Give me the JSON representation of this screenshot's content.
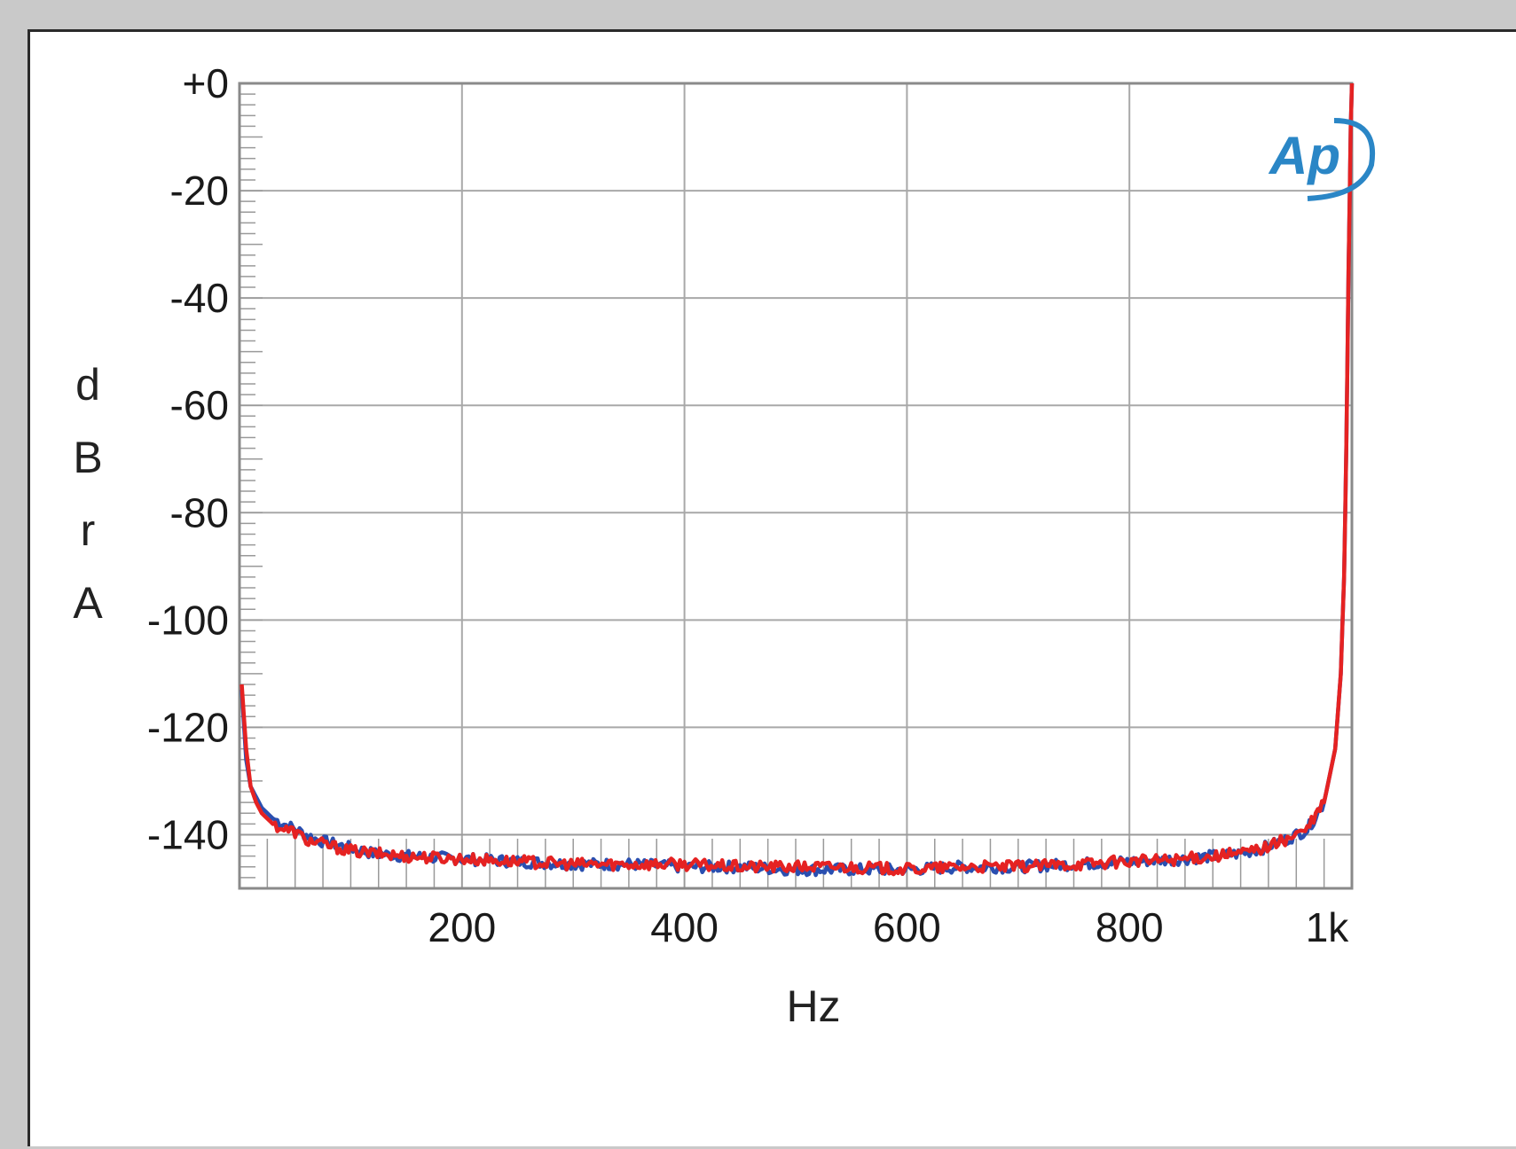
{
  "chart_data": {
    "type": "line",
    "title": "",
    "xlabel": "Hz",
    "ylabel": "dBrA",
    "xlim": [
      0,
      1000
    ],
    "ylim": [
      -150,
      0
    ],
    "grid": true,
    "legend": "none",
    "logo": "Ap",
    "x_tick_labels": [
      {
        "value": 200,
        "label": "200"
      },
      {
        "value": 400,
        "label": "400"
      },
      {
        "value": 600,
        "label": "600"
      },
      {
        "value": 800,
        "label": "800"
      },
      {
        "value": 1000,
        "label": "1k"
      }
    ],
    "y_tick_labels": [
      {
        "value": 0,
        "label": "+0"
      },
      {
        "value": -20,
        "label": "-20"
      },
      {
        "value": -40,
        "label": "-40"
      },
      {
        "value": -60,
        "label": "-60"
      },
      {
        "value": -80,
        "label": "-80"
      },
      {
        "value": -100,
        "label": "-100"
      },
      {
        "value": -120,
        "label": "-120"
      },
      {
        "value": -140,
        "label": "-140"
      }
    ],
    "series": [
      {
        "color": "#2a4fb0",
        "x": [
          2,
          6,
          10,
          15,
          20,
          30,
          40,
          50,
          60,
          70,
          80,
          90,
          100,
          120,
          150,
          200,
          250,
          300,
          350,
          400,
          450,
          500,
          550,
          600,
          650,
          700,
          750,
          800,
          850,
          900,
          920,
          940,
          960,
          975,
          985,
          990,
          993,
          995,
          997,
          999,
          1000
        ],
        "y": [
          -113,
          -126,
          -131,
          -133,
          -135,
          -137,
          -138,
          -139,
          -140,
          -141,
          -141.5,
          -142,
          -142.5,
          -143.5,
          -144,
          -144.5,
          -145,
          -145.5,
          -145.5,
          -146,
          -146,
          -146.5,
          -146.5,
          -146.5,
          -146,
          -146,
          -145.5,
          -145,
          -144.5,
          -143.5,
          -142.5,
          -141,
          -139,
          -134,
          -124,
          -110,
          -92,
          -68,
          -35,
          -8,
          0
        ]
      },
      {
        "color": "#e52222",
        "x": [
          2,
          6,
          10,
          15,
          20,
          30,
          40,
          50,
          60,
          70,
          80,
          90,
          100,
          120,
          150,
          200,
          250,
          300,
          350,
          400,
          450,
          500,
          550,
          600,
          650,
          700,
          750,
          800,
          850,
          900,
          920,
          940,
          960,
          975,
          985,
          990,
          993,
          995,
          997,
          999,
          1000
        ],
        "y": [
          -112,
          -124,
          -131,
          -134,
          -136,
          -138,
          -139,
          -139.5,
          -141,
          -141.5,
          -142,
          -142.5,
          -143,
          -143.5,
          -144,
          -144.5,
          -145,
          -145.5,
          -145.5,
          -145.5,
          -146,
          -146,
          -146,
          -146.5,
          -146,
          -146,
          -145.5,
          -145,
          -144.5,
          -143.5,
          -142.5,
          -141,
          -139,
          -134,
          -124,
          -110,
          -92,
          -68,
          -35,
          -8,
          0
        ]
      }
    ]
  }
}
